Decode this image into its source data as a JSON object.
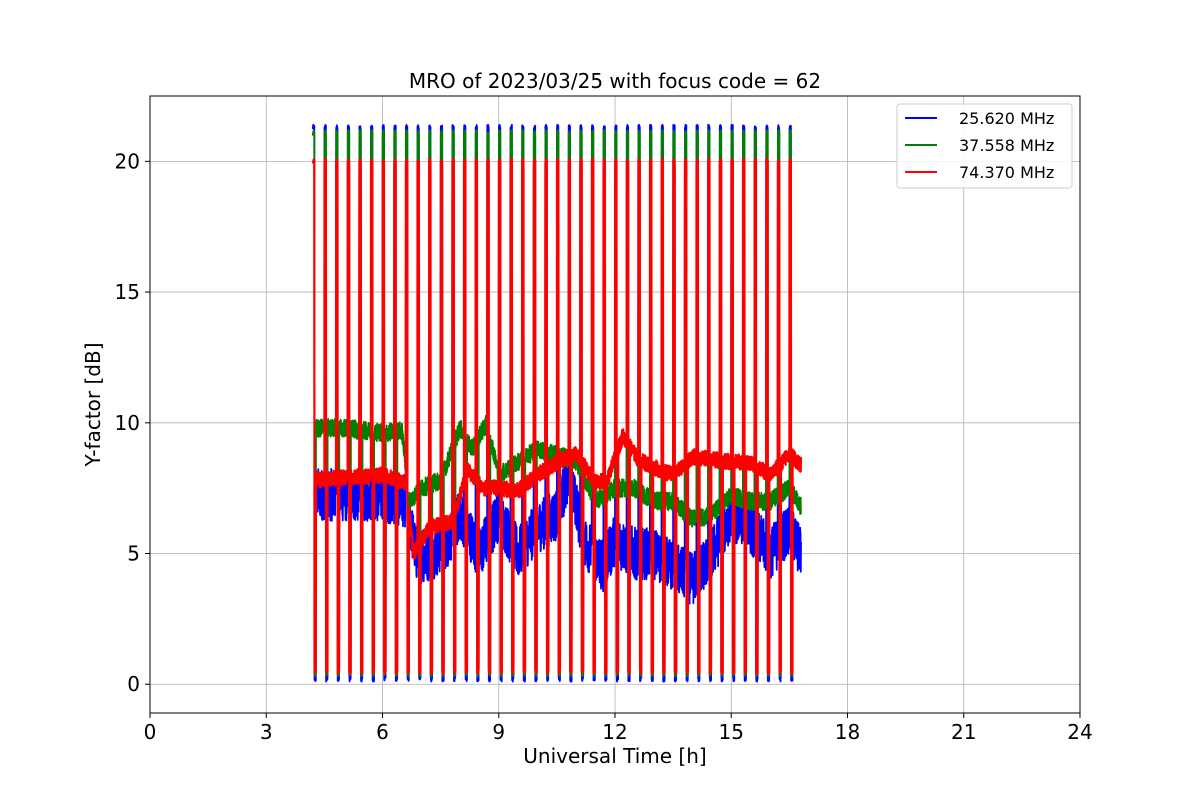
{
  "chart_data": {
    "type": "line",
    "title": "MRO of 2023/03/25 with focus code = 62",
    "xlabel": "Universal Time [h]",
    "ylabel": "Y-factor [dB]",
    "xlim": [
      0,
      24
    ],
    "ylim": [
      -1.1,
      22.5
    ],
    "xticks": [
      0,
      3,
      6,
      9,
      12,
      15,
      18,
      21,
      24
    ],
    "yticks": [
      0,
      5,
      10,
      15,
      20
    ],
    "grid": true,
    "legend_position": "top-right",
    "calibration": {
      "start_h": 4.2,
      "end_h": 16.8,
      "period_h": 0.3,
      "pulse_width_h": 0.08,
      "high_db": {
        "25.620 MHz": 21.3,
        "37.558 MHz": 21.1,
        "74.370 MHz": 20.0
      },
      "low_db": {
        "25.620 MHz": 0.2,
        "37.558 MHz": 0.4,
        "74.370 MHz": 0.5
      }
    },
    "series": [
      {
        "name": "25.620 MHz",
        "color": "#0000ff",
        "x": [
          4.2,
          5.0,
          6.0,
          6.6,
          6.9,
          7.3,
          7.7,
          8.0,
          8.5,
          9.0,
          9.5,
          10.0,
          10.5,
          10.8,
          11.2,
          11.7,
          12.0,
          12.5,
          13.0,
          13.5,
          14.0,
          14.5,
          15.0,
          15.5,
          16.0,
          16.5,
          16.8
        ],
        "y": [
          7.3,
          7.2,
          7.2,
          7.0,
          4.8,
          5.0,
          5.5,
          6.5,
          5.0,
          6.5,
          5.0,
          6.0,
          6.5,
          8.0,
          5.5,
          4.5,
          5.5,
          5.0,
          5.0,
          4.5,
          4.0,
          5.0,
          6.5,
          6.0,
          5.0,
          6.0,
          5.0
        ],
        "noise": 1.0
      },
      {
        "name": "37.558 MHz",
        "color": "#008000",
        "x": [
          4.2,
          5.0,
          6.0,
          6.5,
          6.7,
          7.0,
          7.5,
          8.0,
          8.3,
          8.7,
          9.0,
          9.5,
          10.0,
          10.5,
          11.0,
          11.5,
          12.0,
          12.5,
          13.0,
          13.5,
          14.0,
          14.5,
          15.0,
          15.5,
          16.0,
          16.5,
          16.8
        ],
        "y": [
          9.8,
          9.8,
          9.6,
          9.7,
          7.0,
          7.5,
          7.8,
          9.8,
          9.0,
          10.0,
          8.0,
          8.5,
          9.0,
          8.8,
          8.5,
          7.0,
          7.5,
          7.5,
          7.0,
          7.0,
          6.3,
          6.5,
          7.2,
          7.0,
          7.0,
          7.5,
          6.8
        ],
        "noise": 0.35
      },
      {
        "name": "74.370 MHz",
        "color": "#ff0000",
        "x": [
          4.2,
          5.0,
          6.0,
          6.6,
          6.8,
          7.2,
          7.8,
          8.2,
          8.6,
          9.0,
          9.5,
          10.0,
          10.5,
          11.0,
          11.5,
          11.8,
          12.2,
          12.6,
          13.0,
          13.5,
          14.0,
          14.5,
          15.0,
          15.5,
          16.0,
          16.5,
          16.8
        ],
        "y": [
          7.8,
          7.9,
          8.0,
          7.7,
          5.0,
          6.0,
          6.2,
          8.2,
          7.5,
          7.5,
          7.4,
          8.0,
          8.5,
          8.8,
          7.7,
          7.8,
          9.5,
          8.6,
          8.3,
          8.0,
          8.7,
          8.6,
          8.5,
          8.5,
          8.0,
          8.8,
          8.4
        ],
        "noise": 0.3
      }
    ]
  }
}
